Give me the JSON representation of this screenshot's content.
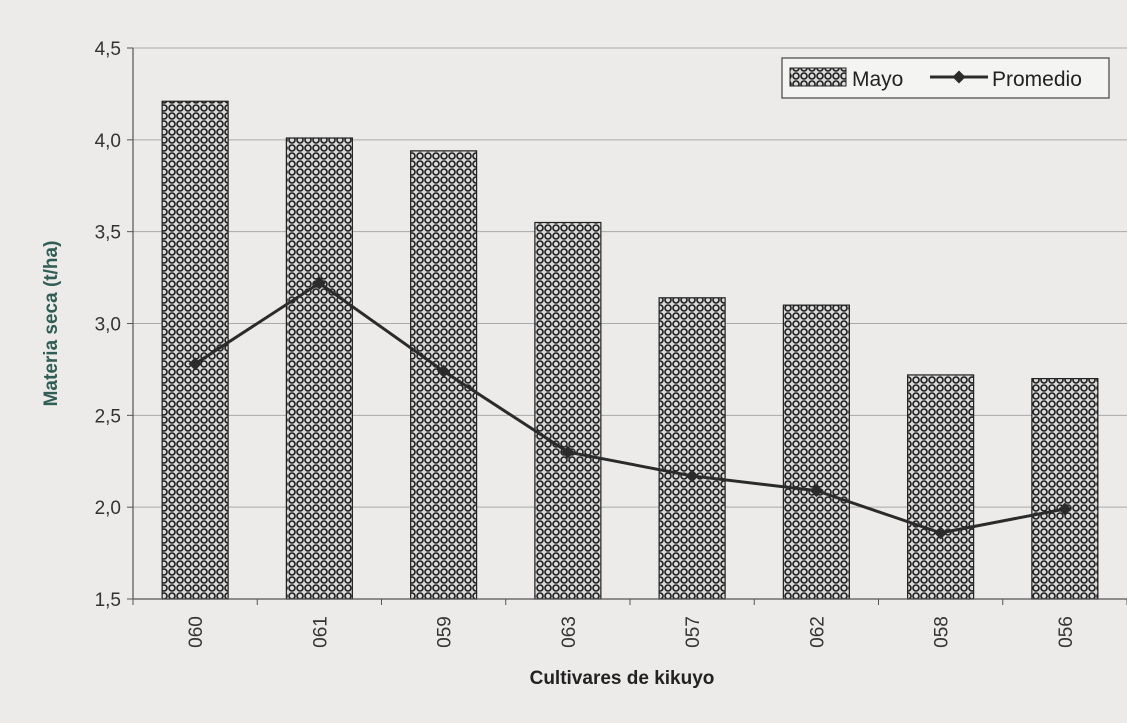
{
  "chart_data": {
    "type": "bar",
    "xlabel": "Cultivares de kikuyo",
    "ylabel": "Materia seca (t/ha)",
    "categories": [
      "060",
      "061",
      "059",
      "063",
      "057",
      "062",
      "058",
      "056"
    ],
    "ylim": [
      1.5,
      4.5
    ],
    "yticks": [
      "1,5",
      "2,0",
      "2,5",
      "3,0",
      "3,5",
      "4,0",
      "4,5"
    ],
    "ytick_values": [
      1.5,
      2.0,
      2.5,
      3.0,
      3.5,
      4.0,
      4.5
    ],
    "grid": true,
    "legend_position": "top-right",
    "series": [
      {
        "name": "Mayo",
        "type": "bar",
        "pattern": "dotted",
        "values": [
          4.21,
          4.01,
          3.94,
          3.55,
          3.14,
          3.1,
          2.72,
          2.7
        ]
      },
      {
        "name": "Promedio",
        "type": "line",
        "marker": "diamond",
        "values": [
          2.78,
          3.22,
          2.74,
          2.3,
          2.17,
          2.09,
          1.86,
          1.99
        ]
      }
    ],
    "colors": {
      "background": "#ecebe9",
      "grid": "#a9a9a9",
      "axis": "#555555",
      "bar_fill": "#d9d9d9",
      "bar_dots": "#1e1e1e",
      "line": "#2b2b2b",
      "axis_title": "#2e5e55",
      "text": "#333333"
    }
  }
}
